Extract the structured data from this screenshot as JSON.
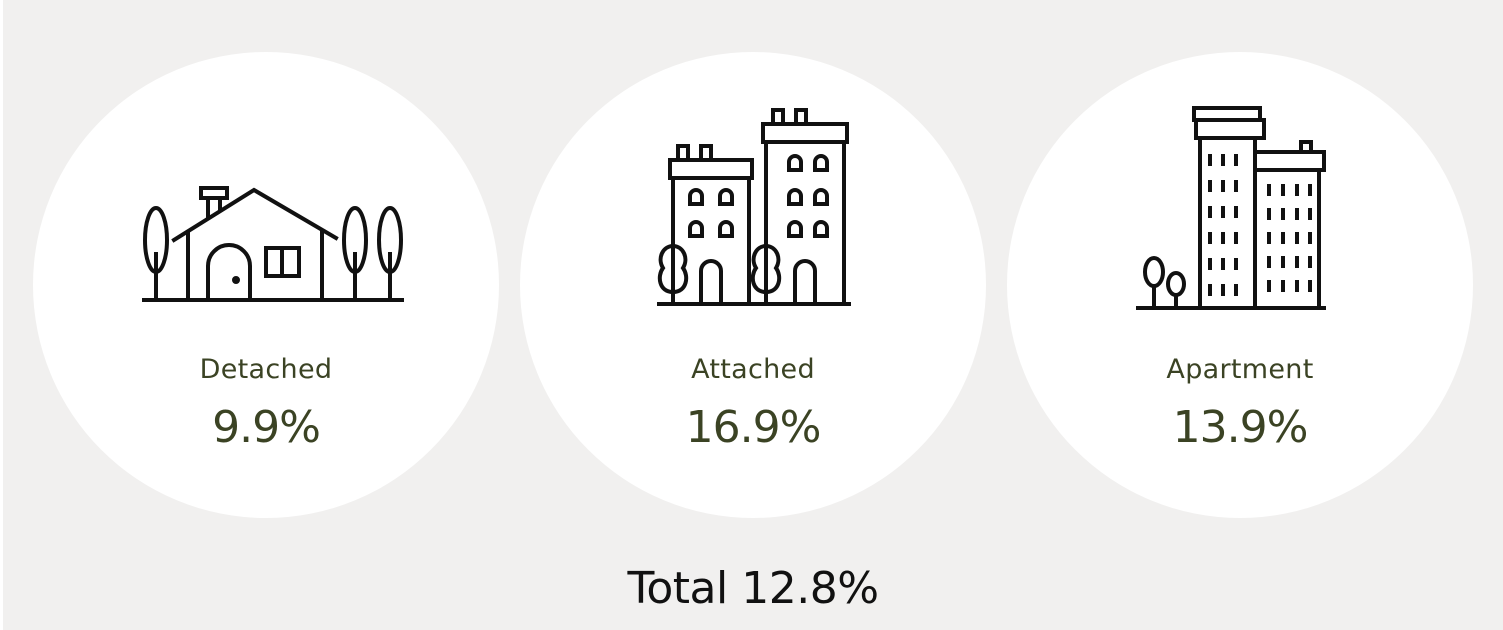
{
  "categories": [
    {
      "label": "Detached",
      "value": "9.9%",
      "icon": "house-icon"
    },
    {
      "label": "Attached",
      "value": "16.9%",
      "icon": "townhouse-icon"
    },
    {
      "label": "Apartment",
      "value": "13.9%",
      "icon": "apartment-building-icon"
    }
  ],
  "total": "Total 12.8%",
  "colors": {
    "background": "#f1f0ef",
    "circle": "#ffffff",
    "accent_text": "#3b4324",
    "total_text": "#111111"
  }
}
